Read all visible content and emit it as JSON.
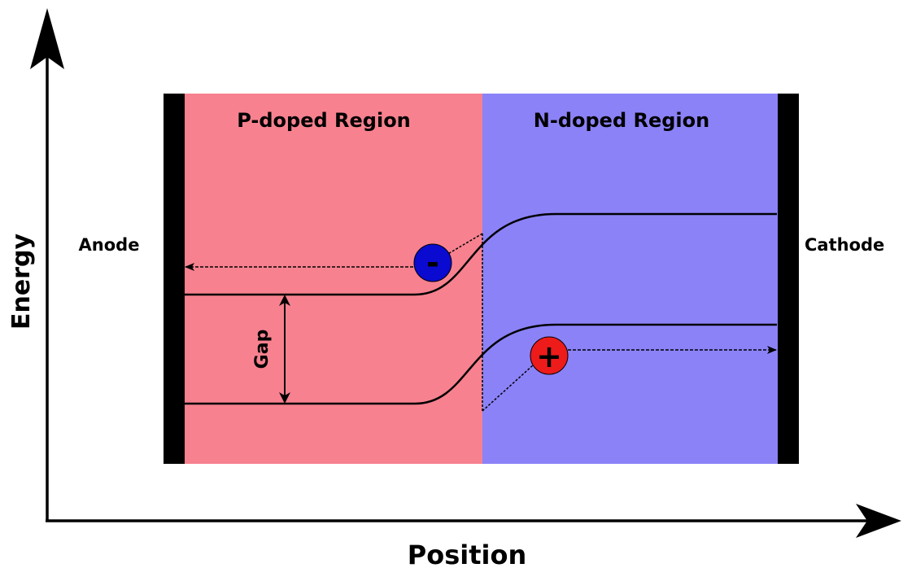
{
  "axes": {
    "y_label": "Energy",
    "x_label": "Position"
  },
  "regions": {
    "p_label": "P-doped Region",
    "n_label": "N-doped Region"
  },
  "electrodes": {
    "anode_label": "Anode",
    "cathode_label": "Cathode"
  },
  "gap_label": "Gap",
  "carriers": {
    "electron_symbol": "-",
    "hole_symbol": "+"
  },
  "colors": {
    "p_region": "#f7818f",
    "n_region": "#8b82f8",
    "electrode": "#000000",
    "electron": "#0a0ad1",
    "hole": "#ee1b1b",
    "band_line": "#000000"
  }
}
